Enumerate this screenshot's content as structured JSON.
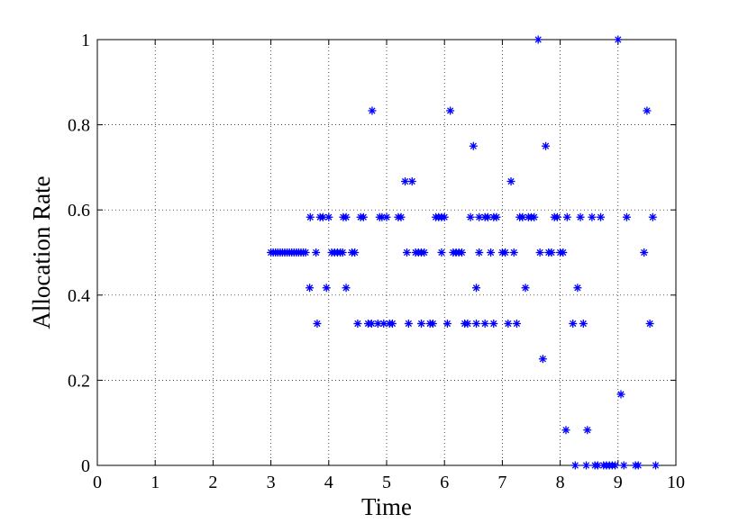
{
  "chart_data": {
    "type": "scatter",
    "xlabel": "Time",
    "ylabel": "Allocation Rate",
    "xlim": [
      0,
      10
    ],
    "ylim": [
      0,
      1
    ],
    "xticks": [
      "0",
      "1",
      "2",
      "3",
      "4",
      "5",
      "6",
      "7",
      "8",
      "9",
      "10"
    ],
    "yticks": [
      "0",
      "0.2",
      "0.4",
      "0.6",
      "0.8",
      "1"
    ],
    "grid": true,
    "marker": "*",
    "marker_color": "#0000ff",
    "points": [
      [
        3.0,
        0.5
      ],
      [
        3.04,
        0.5
      ],
      [
        3.08,
        0.5
      ],
      [
        3.12,
        0.5
      ],
      [
        3.16,
        0.5
      ],
      [
        3.2,
        0.5
      ],
      [
        3.24,
        0.5
      ],
      [
        3.28,
        0.5
      ],
      [
        3.32,
        0.5
      ],
      [
        3.36,
        0.5
      ],
      [
        3.4,
        0.5
      ],
      [
        3.44,
        0.5
      ],
      [
        3.48,
        0.5
      ],
      [
        3.52,
        0.5
      ],
      [
        3.56,
        0.5
      ],
      [
        3.6,
        0.5
      ],
      [
        3.78,
        0.5
      ],
      [
        3.68,
        0.583
      ],
      [
        3.85,
        0.583
      ],
      [
        3.9,
        0.583
      ],
      [
        4.0,
        0.583
      ],
      [
        3.67,
        0.417
      ],
      [
        3.96,
        0.417
      ],
      [
        3.8,
        0.333
      ],
      [
        4.05,
        0.5
      ],
      [
        4.1,
        0.5
      ],
      [
        4.15,
        0.5
      ],
      [
        4.2,
        0.5
      ],
      [
        4.24,
        0.5
      ],
      [
        4.4,
        0.5
      ],
      [
        4.45,
        0.5
      ],
      [
        4.3,
        0.417
      ],
      [
        4.25,
        0.583
      ],
      [
        4.3,
        0.583
      ],
      [
        4.55,
        0.583
      ],
      [
        4.6,
        0.583
      ],
      [
        4.5,
        0.333
      ],
      [
        4.68,
        0.333
      ],
      [
        4.74,
        0.333
      ],
      [
        4.85,
        0.333
      ],
      [
        4.95,
        0.333
      ],
      [
        5.05,
        0.333
      ],
      [
        5.1,
        0.333
      ],
      [
        4.75,
        0.833
      ],
      [
        4.88,
        0.583
      ],
      [
        4.92,
        0.583
      ],
      [
        5.0,
        0.583
      ],
      [
        5.2,
        0.583
      ],
      [
        5.25,
        0.583
      ],
      [
        5.32,
        0.667
      ],
      [
        5.44,
        0.667
      ],
      [
        5.35,
        0.5
      ],
      [
        5.5,
        0.5
      ],
      [
        5.55,
        0.5
      ],
      [
        5.6,
        0.5
      ],
      [
        5.65,
        0.5
      ],
      [
        5.38,
        0.333
      ],
      [
        5.6,
        0.333
      ],
      [
        5.75,
        0.333
      ],
      [
        5.8,
        0.333
      ],
      [
        5.85,
        0.583
      ],
      [
        5.9,
        0.583
      ],
      [
        5.95,
        0.583
      ],
      [
        6.0,
        0.583
      ],
      [
        5.95,
        0.5
      ],
      [
        6.05,
        0.333
      ],
      [
        6.35,
        0.333
      ],
      [
        6.4,
        0.333
      ],
      [
        6.55,
        0.333
      ],
      [
        6.1,
        0.833
      ],
      [
        6.15,
        0.5
      ],
      [
        6.2,
        0.5
      ],
      [
        6.25,
        0.5
      ],
      [
        6.3,
        0.5
      ],
      [
        6.45,
        0.583
      ],
      [
        6.6,
        0.583
      ],
      [
        6.7,
        0.583
      ],
      [
        6.75,
        0.583
      ],
      [
        6.85,
        0.583
      ],
      [
        6.9,
        0.583
      ],
      [
        6.5,
        0.75
      ],
      [
        6.6,
        0.5
      ],
      [
        6.8,
        0.5
      ],
      [
        7.0,
        0.5
      ],
      [
        7.05,
        0.5
      ],
      [
        7.2,
        0.5
      ],
      [
        6.55,
        0.417
      ],
      [
        6.7,
        0.333
      ],
      [
        6.85,
        0.333
      ],
      [
        7.1,
        0.333
      ],
      [
        7.25,
        0.333
      ],
      [
        7.15,
        0.667
      ],
      [
        7.3,
        0.583
      ],
      [
        7.35,
        0.583
      ],
      [
        7.45,
        0.583
      ],
      [
        7.5,
        0.583
      ],
      [
        7.55,
        0.583
      ],
      [
        7.4,
        0.417
      ],
      [
        7.62,
        1.0
      ],
      [
        7.65,
        0.5
      ],
      [
        7.8,
        0.5
      ],
      [
        7.85,
        0.5
      ],
      [
        8.0,
        0.5
      ],
      [
        8.05,
        0.5
      ],
      [
        7.7,
        0.25
      ],
      [
        7.75,
        0.75
      ],
      [
        7.9,
        0.583
      ],
      [
        7.95,
        0.583
      ],
      [
        8.12,
        0.583
      ],
      [
        8.35,
        0.583
      ],
      [
        8.55,
        0.583
      ],
      [
        8.7,
        0.583
      ],
      [
        8.1,
        0.083
      ],
      [
        8.22,
        0.333
      ],
      [
        8.3,
        0.417
      ],
      [
        8.4,
        0.333
      ],
      [
        8.47,
        0.083
      ],
      [
        8.26,
        0.0
      ],
      [
        8.45,
        0.0
      ],
      [
        8.6,
        0.0
      ],
      [
        8.65,
        0.0
      ],
      [
        8.75,
        0.0
      ],
      [
        8.8,
        0.0
      ],
      [
        8.85,
        0.0
      ],
      [
        8.9,
        0.0
      ],
      [
        8.95,
        0.0
      ],
      [
        9.1,
        0.0
      ],
      [
        9.3,
        0.0
      ],
      [
        9.35,
        0.0
      ],
      [
        9.65,
        0.0
      ],
      [
        9.0,
        1.0
      ],
      [
        9.05,
        0.167
      ],
      [
        9.15,
        0.583
      ],
      [
        9.45,
        0.5
      ],
      [
        9.5,
        0.833
      ],
      [
        9.55,
        0.333
      ],
      [
        9.6,
        0.583
      ]
    ]
  }
}
